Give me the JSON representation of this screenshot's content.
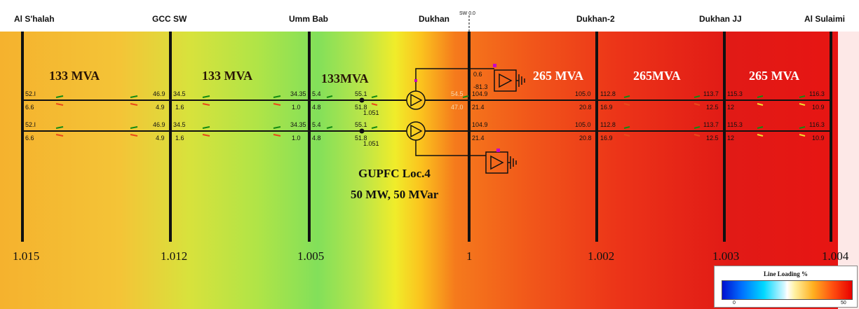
{
  "buses": [
    {
      "name": "Al S'halah",
      "voltage": "1.015"
    },
    {
      "name": "GCC SW",
      "voltage": "1.012"
    },
    {
      "name": "Umm Bab",
      "voltage": "1.005"
    },
    {
      "name": "Dukhan",
      "voltage": "1"
    },
    {
      "name": "Dukhan-2",
      "voltage": "1.002"
    },
    {
      "name": "Dukhan JJ",
      "voltage": "1.003"
    },
    {
      "name": "Al Sulaimi",
      "voltage": "1.004"
    }
  ],
  "switch_label": "SW 0.0",
  "ratings": [
    "133 MVA",
    "133 MVA",
    "133MVA",
    "265 MVA",
    "265MVA",
    "265 MVA"
  ],
  "flows": {
    "s1": {
      "a1": "52.I",
      "b1": "6.6",
      "a2": "52.I",
      "b2": "6.6"
    },
    "s2": {
      "a1": "46.9",
      "b1": "4.9",
      "a2": "46.9",
      "b2": "4.9"
    },
    "s3": {
      "a1": "34.5",
      "b1": "1.6",
      "a2": "34.5",
      "b2": "1.6"
    },
    "s4": {
      "a1": "34.35",
      "b1": "1.0",
      "a2": "34.35",
      "b2": "1.0"
    },
    "s5": {
      "a1": "5.4",
      "b1": "4.8",
      "a2": "5.4",
      "b2": "4.8"
    },
    "s6": {
      "a1": "55.1",
      "b1": "51.8",
      "c1": "1.051",
      "a2": "55.1",
      "b2": "51.8",
      "c2": "1.051"
    },
    "s7": {
      "a1": "54.5",
      "b1": "47.0"
    },
    "s8": {
      "a1": "104.9",
      "b1": "21.4",
      "a2": "104.9",
      "b2": "21.4"
    },
    "s9": {
      "a1": "105.0",
      "b1": "20.8",
      "a2": "105.0",
      "b2": "20.8"
    },
    "s10": {
      "a1": "112.8",
      "b1": "16.9",
      "a2": "112.8",
      "b2": "16.9"
    },
    "s11": {
      "a1": "113.7",
      "b1": "12.5",
      "a2": "113.7",
      "b2": "12.5"
    },
    "s12": {
      "a1": "115.3",
      "b1": "12",
      "a2": "115.3",
      "b2": "12"
    },
    "s13": {
      "a1": "116.3",
      "b1": "10.9",
      "a2": "116.3",
      "b2": "10.9"
    },
    "shunt_top": {
      "a": "0.6",
      "b": "-81.3"
    }
  },
  "gupfc": {
    "line1": "GUPFC  Loc.4",
    "line2": "50 MW, 50 MVar"
  },
  "legend": {
    "title": "Line  Loading %",
    "min": "0",
    "max": "50"
  }
}
